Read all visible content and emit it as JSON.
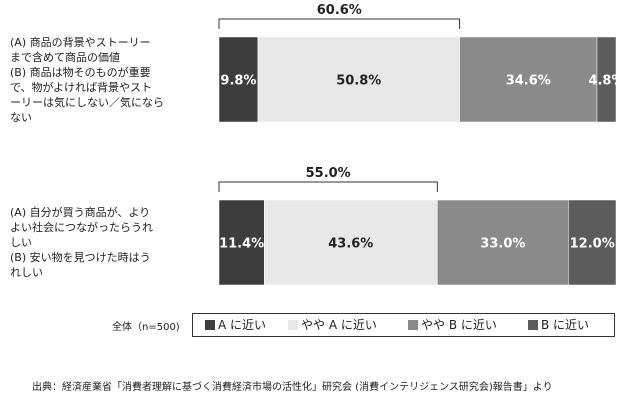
{
  "chart_data": {
    "type": "bar",
    "orientation": "horizontal",
    "stacked": true,
    "unit": "%",
    "legend_total_label": "全体（n=500)",
    "legend_position": "bottom",
    "series": [
      {
        "name": "A に近い",
        "color": "#3d3d3d",
        "values": [
          9.8,
          11.4
        ]
      },
      {
        "name": "やや A に近い",
        "color": "#e8e8e8",
        "values": [
          50.8,
          43.6
        ]
      },
      {
        "name": "やや B に近い",
        "color": "#8a8a8a",
        "values": [
          34.6,
          33.0
        ]
      },
      {
        "name": "B に近い",
        "color": "#5c5c5c",
        "values": [
          4.8,
          12.0
        ]
      }
    ],
    "value_labels": [
      [
        "9.8%",
        "50.8%",
        "34.6%",
        "4.8%"
      ],
      [
        "11.4%",
        "43.6%",
        "33.0%",
        "12.0%"
      ]
    ],
    "bracket_labels": [
      "60.6%",
      "55.0%"
    ],
    "questions": [
      {
        "a_lines": [
          "(A)  商品の背景やストーリー",
          "まで含めて商品の価値"
        ],
        "b_lines": [
          "(B)  商品は物そのものが重要",
          "で、物がよければ背景やスト",
          "ーリーは気にしない／気になら",
          "ない"
        ]
      },
      {
        "a_lines": [
          "(A)  自分が買う商品が、より",
          "よい社会につながったらうれ",
          "しい"
        ],
        "b_lines": [
          "(B)  安い物を見つけた時はう",
          "れしい"
        ]
      }
    ]
  },
  "source": "出典：経済産業省「消費者理解に基づく消費経済市場の活性化」研究会 (消費インテリジェンス研究会)報告書」より"
}
